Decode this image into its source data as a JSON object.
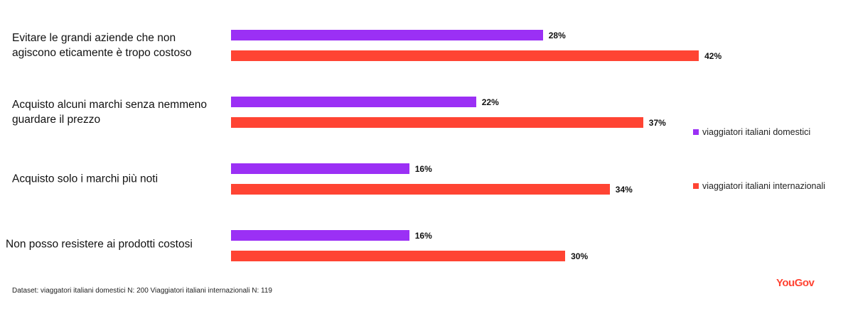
{
  "chart_data": {
    "type": "bar",
    "orientation": "horizontal",
    "categories": [
      "Evitare le grandi aziende che non agiscono eticamente è tropo costoso",
      "Acquisto alcuni marchi senza nemmeno guardare il prezzo",
      "Acquisto solo i marchi più noti",
      "Non posso resistere ai prodotti costosi"
    ],
    "series": [
      {
        "name": "viaggiatori italiani domestici",
        "color": "#9b30f5",
        "values": [
          28,
          22,
          16,
          16
        ],
        "value_labels": [
          "28%",
          "22%",
          "16%",
          "16%"
        ]
      },
      {
        "name": "viaggiatori italiani internazionali",
        "color": "#ff4433",
        "values": [
          42,
          37,
          34,
          30
        ],
        "value_labels": [
          "42%",
          "37%",
          "34%",
          "30%"
        ]
      }
    ]
  },
  "footer": "Dataset: viaggatori italiani domestici N: 200 Viaggiatori italiani internazionali N: 119",
  "logo": "YouGov"
}
